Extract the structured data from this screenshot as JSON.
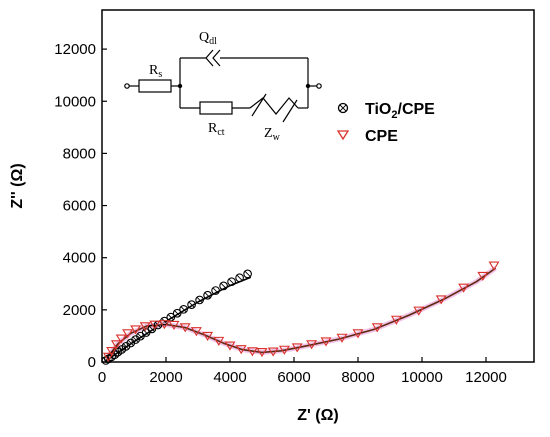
{
  "chart_data": {
    "type": "scatter",
    "xlabel": "Z' (Ω)",
    "ylabel": "Z'' (Ω)",
    "xlim": [
      0,
      13500
    ],
    "ylim": [
      0,
      13500
    ],
    "x_ticks": [
      "0",
      "2000",
      "4000",
      "6000",
      "8000",
      "10000",
      "12000"
    ],
    "y_ticks": [
      "0",
      "2000",
      "4000",
      "6000",
      "8000",
      "10000",
      "12000"
    ],
    "grid": false,
    "legend_position": "top-right",
    "series": [
      {
        "name": "TiO2/CPE",
        "name_main": "TiO",
        "name_sub": "2",
        "name_rest": "/CPE",
        "marker": "circle-x",
        "color": "#000000",
        "points": [
          [
            120,
            60
          ],
          [
            200,
            120
          ],
          [
            300,
            200
          ],
          [
            400,
            280
          ],
          [
            500,
            380
          ],
          [
            620,
            480
          ],
          [
            750,
            600
          ],
          [
            900,
            730
          ],
          [
            1050,
            860
          ],
          [
            1200,
            990
          ],
          [
            1380,
            1130
          ],
          [
            1560,
            1270
          ],
          [
            1750,
            1420
          ],
          [
            1950,
            1570
          ],
          [
            2150,
            1720
          ],
          [
            2350,
            1870
          ],
          [
            2550,
            2020
          ],
          [
            2800,
            2200
          ],
          [
            3050,
            2380
          ],
          [
            3300,
            2560
          ],
          [
            3550,
            2740
          ],
          [
            3800,
            2920
          ],
          [
            4050,
            3080
          ],
          [
            4300,
            3230
          ],
          [
            4550,
            3380
          ]
        ],
        "fit": [
          [
            100,
            30
          ],
          [
            1000,
            780
          ],
          [
            2000,
            1560
          ],
          [
            3000,
            2300
          ],
          [
            4000,
            2930
          ],
          [
            4650,
            3250
          ]
        ]
      },
      {
        "name": "CPE",
        "marker": "triangle-down",
        "color": "#d9312a",
        "points": [
          [
            200,
            200
          ],
          [
            300,
            420
          ],
          [
            450,
            680
          ],
          [
            600,
            900
          ],
          [
            800,
            1100
          ],
          [
            1050,
            1250
          ],
          [
            1350,
            1370
          ],
          [
            1650,
            1430
          ],
          [
            1950,
            1450
          ],
          [
            2250,
            1420
          ],
          [
            2600,
            1330
          ],
          [
            2950,
            1180
          ],
          [
            3300,
            1000
          ],
          [
            3650,
            810
          ],
          [
            4000,
            630
          ],
          [
            4350,
            490
          ],
          [
            4700,
            410
          ],
          [
            5000,
            380
          ],
          [
            5350,
            400
          ],
          [
            5700,
            470
          ],
          [
            6100,
            560
          ],
          [
            6550,
            680
          ],
          [
            7000,
            790
          ],
          [
            7500,
            930
          ],
          [
            8000,
            1100
          ],
          [
            8600,
            1330
          ],
          [
            9200,
            1620
          ],
          [
            9900,
            1970
          ],
          [
            10600,
            2400
          ],
          [
            11300,
            2850
          ],
          [
            11900,
            3300
          ],
          [
            12250,
            3700
          ]
        ],
        "fit": [
          [
            150,
            150
          ],
          [
            500,
            700
          ],
          [
            900,
            1100
          ],
          [
            1400,
            1380
          ],
          [
            2000,
            1440
          ],
          [
            2600,
            1320
          ],
          [
            3200,
            1040
          ],
          [
            3800,
            720
          ],
          [
            4400,
            470
          ],
          [
            5000,
            370
          ],
          [
            5600,
            430
          ],
          [
            6400,
            620
          ],
          [
            7400,
            880
          ],
          [
            8500,
            1250
          ],
          [
            9600,
            1800
          ],
          [
            10700,
            2420
          ],
          [
            11700,
            3080
          ],
          [
            12300,
            3600
          ]
        ]
      }
    ]
  },
  "circuit": {
    "rs_main": "R",
    "rs_sub": "s",
    "qdl_main": "Q",
    "qdl_sub": "dl",
    "rct_main": "R",
    "rct_sub": "ct",
    "zw_main": "Z",
    "zw_sub": "w"
  }
}
